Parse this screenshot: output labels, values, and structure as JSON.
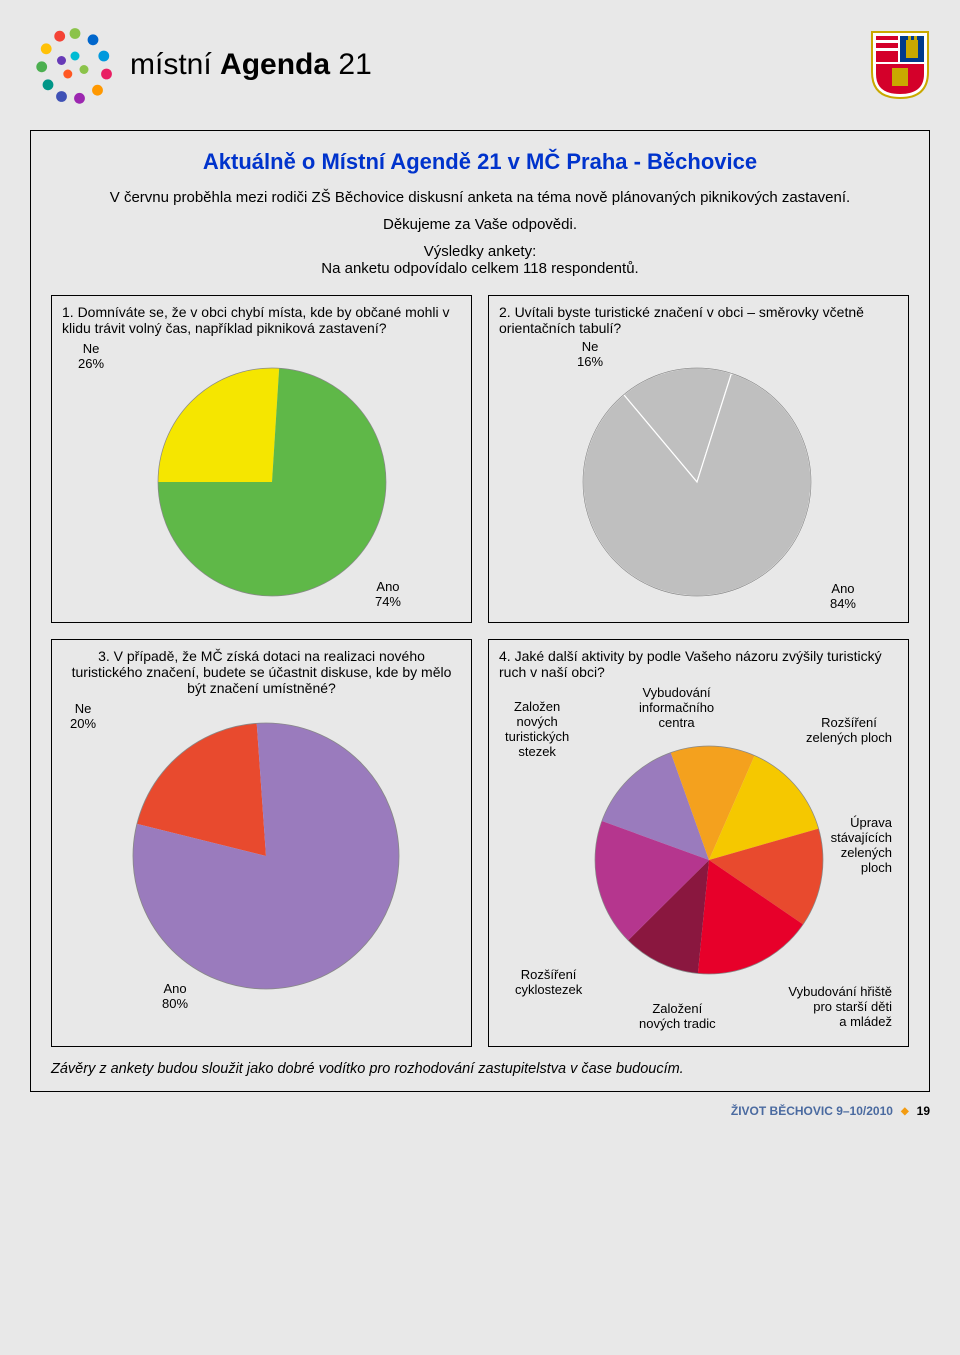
{
  "header": {
    "logo_text_1": "místní",
    "logo_text_2": "Agenda",
    "logo_text_3": "21"
  },
  "main": {
    "title": "Aktuálně o Místní Agendě 21 v MČ Praha - Běchovice",
    "intro1": "V červnu proběhla mezi rodiči ZŠ Běchovice diskusní anketa na téma nově plánovaných piknikových zastavení.",
    "intro2": "Děkujeme za Vaše odpovědi.",
    "sub1": "Výsledky ankety:",
    "sub2": "Na anketu odpovídalo celkem 118 respondentů."
  },
  "q1": {
    "text": "1. Domníváte se, že v obci chybí místa, kde by občané mohli v klidu trávit volný čas, například pikniková zastavení?",
    "type": "pie",
    "slices": [
      {
        "label": "Ne",
        "value": 26,
        "color": "#f5e600"
      },
      {
        "label": "Ano",
        "value": 74,
        "color": "#5fb848"
      }
    ],
    "label_ne": "Ne\n26%",
    "label_ano": "Ano\n74%"
  },
  "q2": {
    "text": "2. Uvítali byste turistické značení v obci – směrovky včetně orientačních tabulí?",
    "type": "pie",
    "slices": [
      {
        "label": "Ne",
        "value": 16,
        "color": "#bfbfbf"
      },
      {
        "label": "Ano",
        "value": 84,
        "color": "#bfbfbf"
      }
    ],
    "label_ne": "Ne\n16%",
    "label_ano": "Ano\n84%"
  },
  "q3": {
    "text": "3. V případě, že MČ získá dotaci na realizaci nového turistického značení, budete se účastnit diskuse, kde by mělo být značení umístněné?",
    "type": "pie",
    "slices": [
      {
        "label": "Ne",
        "value": 20,
        "color": "#e84a2e"
      },
      {
        "label": "Ano",
        "value": 80,
        "color": "#9a7bbd"
      }
    ],
    "label_ne": "Ne\n20%",
    "label_ano": "Ano\n80%"
  },
  "q4": {
    "text": "4. Jaké další aktivity by podle Vašeho názoru zvýšily turistický ruch v naší obci?",
    "type": "pie",
    "slices": [
      {
        "label": "Založen nových turistických stezek",
        "value": 14,
        "color": "#9a7bbd"
      },
      {
        "label": "Vybudování informačního centra",
        "value": 12,
        "color": "#f4a11e"
      },
      {
        "label": "Rozšíření zelených ploch",
        "value": 14,
        "color": "#f5c800"
      },
      {
        "label": "Úprava stávajících zelených ploch",
        "value": 14,
        "color": "#e84a2e"
      },
      {
        "label": "Vybudování hřiště pro starší děti a mládež",
        "value": 17,
        "color": "#e7002a"
      },
      {
        "label": "Založení nových tradic",
        "value": 11,
        "color": "#8a173f"
      },
      {
        "label": "Rozšíření cyklostezek",
        "value": 18,
        "color": "#b5368e"
      }
    ],
    "labels": {
      "l1": "Založen\nnových\nturistických\nstezek",
      "l2": "Vybudování\ninformačního\ncentra",
      "l3": "Rozšíření\nzelených ploch",
      "l4": "Úprava\nstávajících\nzelených\nploch",
      "l5": "Vybudování hřiště\npro starší děti\na mládež",
      "l6": "Založení\nnových tradic",
      "l7": "Rozšíření\ncyklostezek"
    }
  },
  "closing": "Závěry z ankety budou sloužit jako dobré vodítko pro rozhodování zastupitelstva v čase budoucím.",
  "footer": {
    "mag": "ŽIVOT BĚCHOVIC 9–10/2010",
    "page": "19"
  }
}
